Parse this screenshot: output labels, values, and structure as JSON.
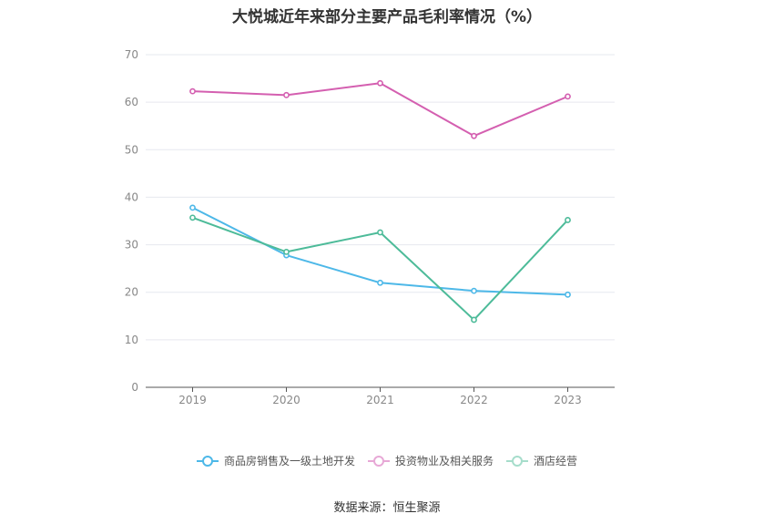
{
  "title": "大悦城近年来部分主要产品毛利率情况（%）",
  "source": "数据来源：恒生聚源",
  "colors": {
    "grid": "#e6e8ef",
    "axis": "#555555",
    "tick_text": "#888888"
  },
  "chart_data": {
    "type": "line",
    "title": "大悦城近年来部分主要产品毛利率情况（%）",
    "categories": [
      "2019",
      "2020",
      "2021",
      "2022",
      "2023"
    ],
    "ylim": [
      0,
      70
    ],
    "yticks": [
      0,
      10,
      20,
      30,
      40,
      50,
      60,
      70
    ],
    "grid": true,
    "legend_position": "bottom",
    "series": [
      {
        "name": "商品房销售及一级土地开发",
        "color": "#4db8e8",
        "values": [
          37.8,
          27.8,
          22.0,
          20.3,
          19.5
        ]
      },
      {
        "name": "投资物业及相关服务",
        "color": "#d45fb0",
        "values": [
          62.3,
          61.5,
          64.0,
          52.9,
          61.2
        ]
      },
      {
        "name": "酒店经营",
        "color": "#4dbb99",
        "values": [
          35.7,
          28.5,
          32.6,
          14.2,
          35.2
        ]
      }
    ]
  }
}
